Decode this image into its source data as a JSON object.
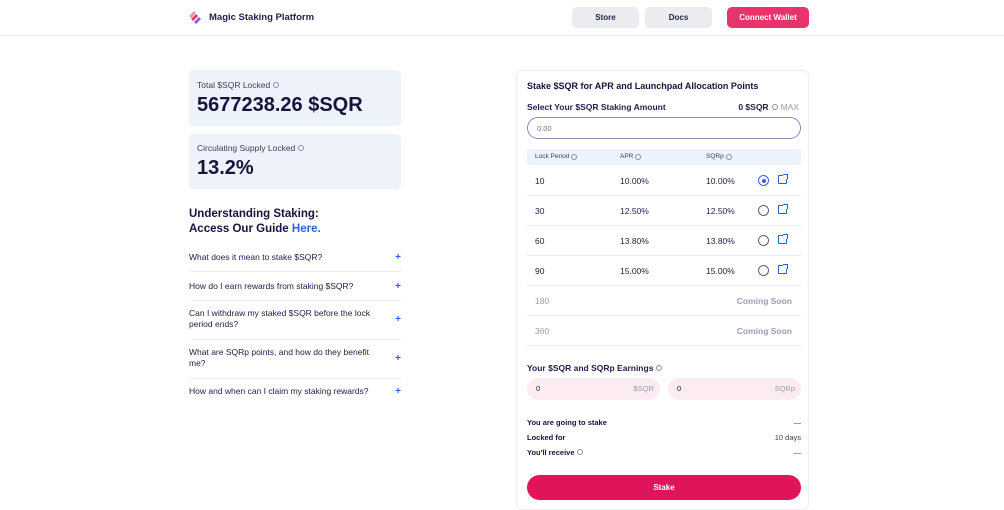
{
  "header": {
    "brand": "Magic Staking Platform",
    "nav": {
      "store": "Store",
      "docs": "Docs",
      "connect": "Connect Wallet"
    }
  },
  "stats": {
    "total_label": "Total $SQR Locked",
    "total_value": "5677238.26 $SQR",
    "supply_label": "Circulating Supply Locked",
    "supply_value": "13.2%"
  },
  "guide": {
    "title_line1": "Understanding Staking:",
    "title_line2_prefix": "Access Our Guide ",
    "link": "Here."
  },
  "faq": [
    "What does it mean to stake $SQR?",
    "How do I earn rewards from staking $SQR?",
    "Can I withdraw my staked $SQR before the lock period ends?",
    "What are SQRp points, and how do they benefit me?",
    "How and when can I claim my staking rewards?"
  ],
  "panel": {
    "title": "Stake $SQR for APR and Launchpad Allocation Points",
    "amount_label": "Select Your $SQR Staking Amount",
    "balance": "0 $SQR",
    "max": "MAX",
    "input_placeholder": "0.00",
    "columns": {
      "period": "Lock Period",
      "apr": "APR",
      "sqrp": "SQRp"
    },
    "rows": [
      {
        "period": "10",
        "apr": "10.00%",
        "sqrp": "10.00%",
        "selected": true
      },
      {
        "period": "30",
        "apr": "12.50%",
        "sqrp": "12.50%",
        "selected": false
      },
      {
        "period": "60",
        "apr": "13.80%",
        "sqrp": "13.80%",
        "selected": false
      },
      {
        "period": "90",
        "apr": "15.00%",
        "sqrp": "15.00%",
        "selected": false
      }
    ],
    "soon_rows": [
      {
        "period": "180",
        "status": "Coming Soon"
      },
      {
        "period": "360",
        "status": "Coming Soon"
      }
    ],
    "earnings_label": "Your $SQR and SQRp Earnings",
    "earn_sqr": {
      "value": "0",
      "unit": "$SQR"
    },
    "earn_sqrp": {
      "value": "0",
      "unit": "SQRp"
    },
    "summary": [
      {
        "label": "You are going to stake",
        "value": "—"
      },
      {
        "label": "Locked for",
        "value": "10 days"
      },
      {
        "label": "You'll receive",
        "value": "—"
      }
    ],
    "stake_button": "Stake"
  },
  "colors": {
    "accent": "#e0145a",
    "link": "#2f5fd8",
    "card": "#eef2fa"
  }
}
